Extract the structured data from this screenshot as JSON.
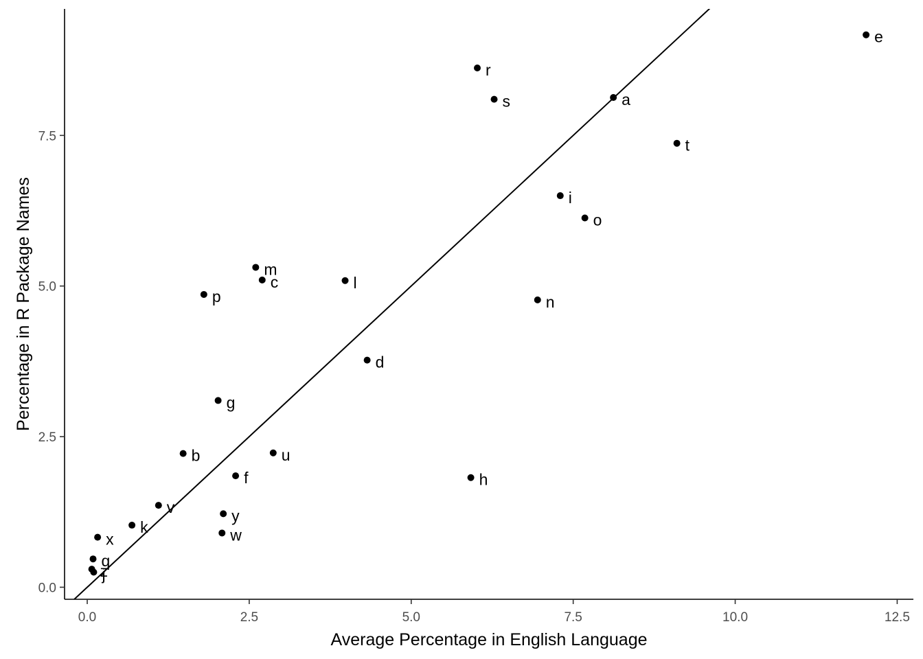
{
  "chart_data": {
    "type": "scatter",
    "title": "",
    "xlabel": "Average Percentage in English Language",
    "ylabel": "Percentage in R Package Names",
    "xlim": [
      -0.35,
      12.75
    ],
    "ylim": [
      -0.2,
      9.6
    ],
    "xticks": [
      {
        "value": 0,
        "label": "0.0"
      },
      {
        "value": 2.5,
        "label": "2.5"
      },
      {
        "value": 5,
        "label": "5.0"
      },
      {
        "value": 7.5,
        "label": "7.5"
      },
      {
        "value": 10,
        "label": "10.0"
      },
      {
        "value": 12.5,
        "label": "12.5"
      }
    ],
    "yticks": [
      {
        "value": 0,
        "label": "0.0"
      },
      {
        "value": 2.5,
        "label": "2.5"
      },
      {
        "value": 5,
        "label": "5.0"
      },
      {
        "value": 7.5,
        "label": "7.5"
      }
    ],
    "grid": false,
    "reference_line": {
      "type": "identity",
      "slope": 1,
      "intercept": 0
    },
    "points": [
      {
        "label": "e",
        "x": 12.02,
        "y": 9.17
      },
      {
        "label": "r",
        "x": 6.02,
        "y": 8.62
      },
      {
        "label": "s",
        "x": 6.28,
        "y": 8.1
      },
      {
        "label": "a",
        "x": 8.12,
        "y": 8.13
      },
      {
        "label": "t",
        "x": 9.1,
        "y": 7.37
      },
      {
        "label": "i",
        "x": 7.3,
        "y": 6.5
      },
      {
        "label": "o",
        "x": 7.68,
        "y": 6.13
      },
      {
        "label": "m",
        "x": 2.6,
        "y": 5.31
      },
      {
        "label": "c",
        "x": 2.7,
        "y": 5.1
      },
      {
        "label": "l",
        "x": 3.98,
        "y": 5.09
      },
      {
        "label": "p",
        "x": 1.8,
        "y": 4.86
      },
      {
        "label": "n",
        "x": 6.95,
        "y": 4.77
      },
      {
        "label": "d",
        "x": 4.32,
        "y": 3.77
      },
      {
        "label": "g",
        "x": 2.02,
        "y": 3.1
      },
      {
        "label": "b",
        "x": 1.48,
        "y": 2.22
      },
      {
        "label": "u",
        "x": 2.87,
        "y": 2.23
      },
      {
        "label": "f",
        "x": 2.29,
        "y": 1.85
      },
      {
        "label": "h",
        "x": 5.92,
        "y": 1.82
      },
      {
        "label": "v",
        "x": 1.1,
        "y": 1.36
      },
      {
        "label": "y",
        "x": 2.1,
        "y": 1.22
      },
      {
        "label": "k",
        "x": 0.69,
        "y": 1.03
      },
      {
        "label": "w",
        "x": 2.08,
        "y": 0.9
      },
      {
        "label": "x",
        "x": 0.16,
        "y": 0.83
      },
      {
        "label": "q",
        "x": 0.09,
        "y": 0.47
      },
      {
        "label": "z",
        "x": 0.07,
        "y": 0.3
      },
      {
        "label": "j",
        "x": 0.1,
        "y": 0.25
      }
    ]
  }
}
